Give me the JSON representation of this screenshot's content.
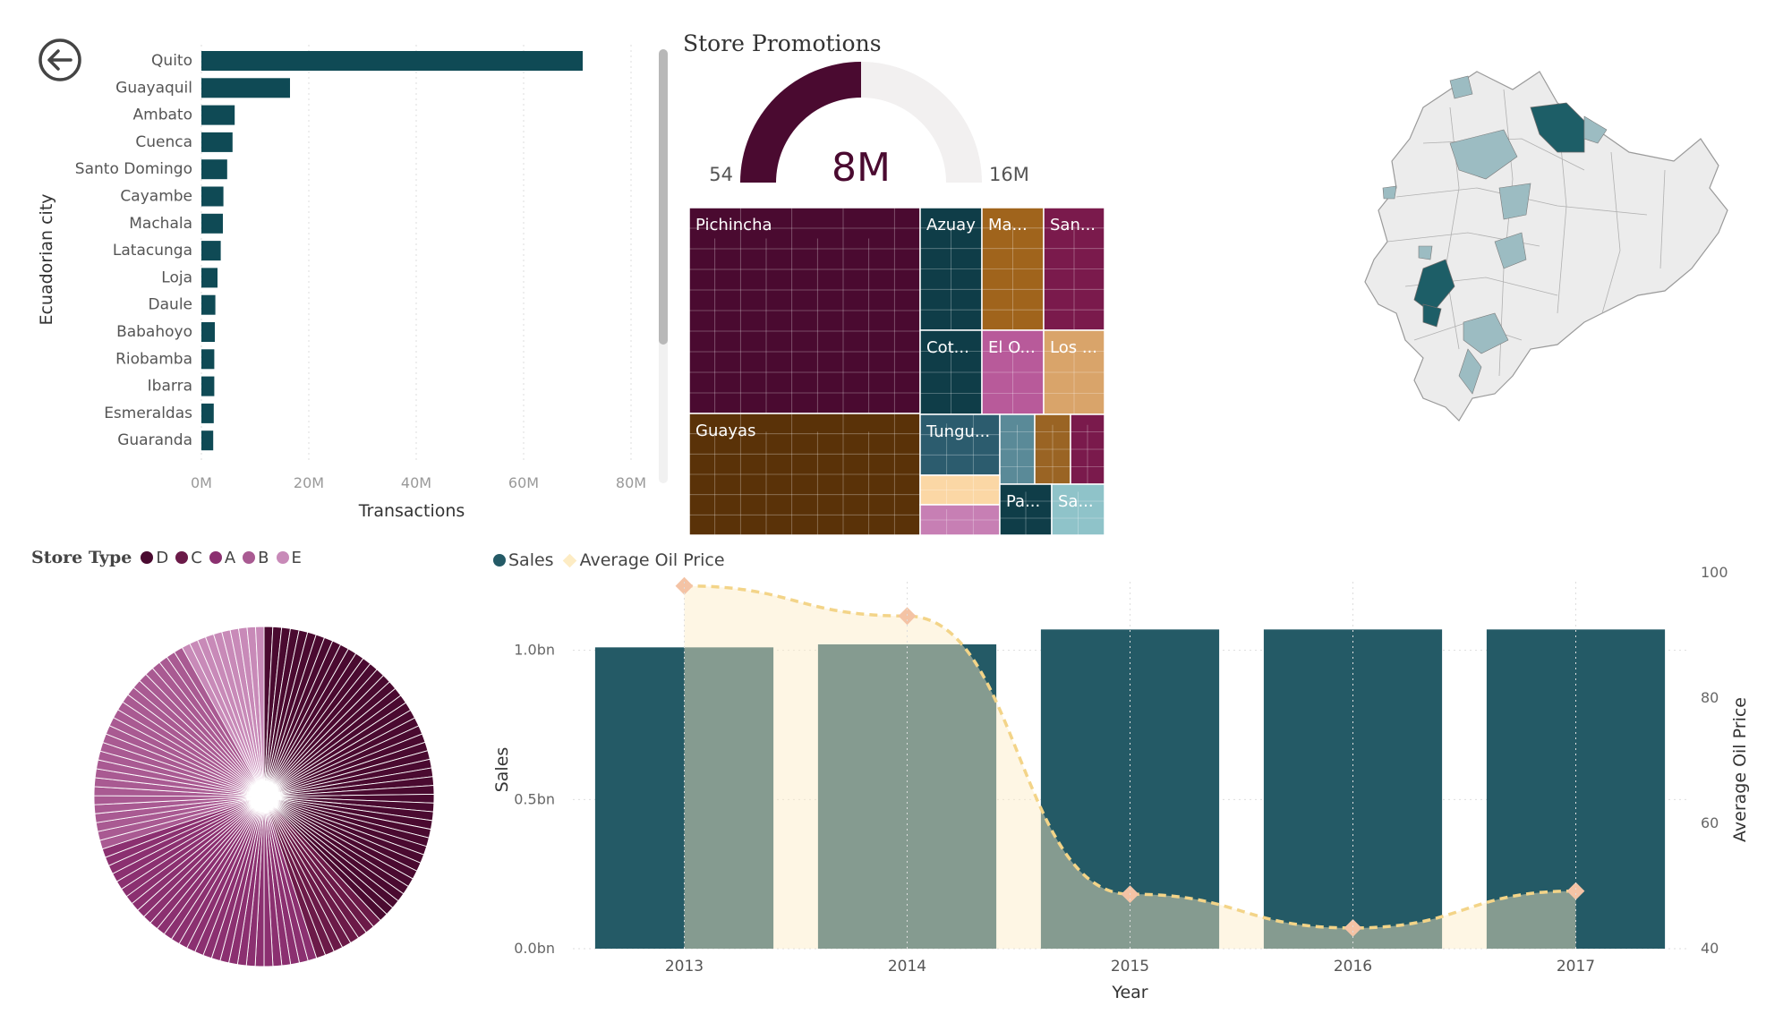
{
  "colors": {
    "teal": "#0f4a55",
    "teal_combo": "#245a66",
    "oil": "#fdecc4",
    "oil_line": "#f3d488",
    "oil_marker": "#f4c3a5",
    "overlap": "#7f9286",
    "gauge_fill": "#4a0a30",
    "gauge_bg": "#f2f0f0",
    "store_D": "#4a0a30",
    "store_C": "#6b1a48",
    "store_A": "#8b3070",
    "store_B": "#a95a92",
    "store_E": "#c88ab8"
  },
  "back_icon": "arrow-left-circle-icon",
  "city_chart": {
    "chart_data": {
      "type": "bar",
      "orientation": "horizontal",
      "ylabel": "Ecuadorian city",
      "xlabel": "Transactions",
      "categories": [
        "Quito",
        "Guayaquil",
        "Ambato",
        "Cuenca",
        "Santo Domingo",
        "Cayambe",
        "Machala",
        "Latacunga",
        "Loja",
        "Daule",
        "Babahoyo",
        "Riobamba",
        "Ibarra",
        "Esmeraldas",
        "Guaranda"
      ],
      "values": [
        71,
        16.5,
        6.2,
        5.8,
        4.8,
        4.1,
        4.0,
        3.6,
        3.0,
        2.6,
        2.5,
        2.4,
        2.4,
        2.3,
        2.2
      ],
      "value_unit": "M",
      "xlim": [
        0,
        80
      ],
      "xticks": [
        "0M",
        "20M",
        "40M",
        "60M",
        "80M"
      ],
      "grid": true
    }
  },
  "gauge": {
    "title": "Store Promotions",
    "chart_data": {
      "type": "gauge",
      "value_label": "8M",
      "min_label": "54",
      "max_label": "16M",
      "fraction": 0.5
    }
  },
  "treemap": {
    "chart_data": {
      "type": "treemap",
      "regions": [
        {
          "label": "Pichincha",
          "color": "#4a0a30"
        },
        {
          "label": "Guayas",
          "color": "#5a3208"
        },
        {
          "label": "Azuay",
          "color": "#0f3d48"
        },
        {
          "label": "Ma...",
          "color": "#a0641c"
        },
        {
          "label": "San...",
          "color": "#7a1a4c"
        },
        {
          "label": "Cot...",
          "color": "#0f3d48"
        },
        {
          "label": "El O...",
          "color": "#b85a9a"
        },
        {
          "label": "Los ...",
          "color": "#d9a46a"
        },
        {
          "label": "Tungu...",
          "color": "#2c5c6e"
        },
        {
          "label": "",
          "color": "#5a8a98"
        },
        {
          "label": "",
          "color": "#9a6424"
        },
        {
          "label": "",
          "color": "#7a1a4c"
        },
        {
          "label": "",
          "color": "#fbd7a5"
        },
        {
          "label": "",
          "color": "#c77fb4"
        },
        {
          "label": "Pa...",
          "color": "#0f3d48"
        },
        {
          "label": "Sa...",
          "color": "#8fc3c9"
        }
      ]
    }
  },
  "map": {
    "name": "Ecuador store map",
    "base_color": "#ececec",
    "highlight_dark": "#1d5e67",
    "highlight_light": "#9cbcc2"
  },
  "store_type_legend": {
    "title": "Store Type",
    "items": [
      {
        "label": "D",
        "color": "#4a0a30"
      },
      {
        "label": "C",
        "color": "#6b1a48"
      },
      {
        "label": "A",
        "color": "#8b3070"
      },
      {
        "label": "B",
        "color": "#a95a92"
      },
      {
        "label": "E",
        "color": "#c88ab8"
      }
    ]
  },
  "pie": {
    "chart_data": {
      "type": "pie",
      "series_name": "Store Type",
      "segments": [
        {
          "label": "D",
          "share": 0.38,
          "color": "#4a0a30"
        },
        {
          "label": "C",
          "share": 0.07,
          "color": "#6b1a48"
        },
        {
          "label": "A",
          "share": 0.25,
          "color": "#8b3070"
        },
        {
          "label": "B",
          "share": 0.22,
          "color": "#a95a92"
        },
        {
          "label": "E",
          "share": 0.08,
          "color": "#c88ab8"
        }
      ]
    }
  },
  "combo": {
    "legend": [
      {
        "label": "Sales",
        "color": "#245a66",
        "shape": "dot"
      },
      {
        "label": "Average Oil Price",
        "color": "#fdecc4",
        "shape": "diamond"
      }
    ],
    "chart_data": {
      "type": "bar",
      "combo": true,
      "xlabel": "Year",
      "ylabel": "Sales",
      "y2label": "Average Oil Price",
      "categories": [
        "2013",
        "2014",
        "2015",
        "2016",
        "2017"
      ],
      "series": [
        {
          "name": "Sales",
          "type": "bar",
          "values": [
            1.01,
            1.02,
            1.07,
            1.07,
            1.07
          ],
          "unit": "bn"
        },
        {
          "name": "Average Oil Price",
          "type": "area",
          "values": [
            97.9,
            93.1,
            48.7,
            43.3,
            49.2
          ],
          "axis": "y2"
        }
      ],
      "ylim": [
        0,
        1.2
      ],
      "yticks": [
        "0.0bn",
        "0.5bn",
        "1.0bn"
      ],
      "ytick_values": [
        0,
        0.5,
        1.0
      ],
      "y2lim": [
        40,
        100
      ],
      "y2ticks": [
        "40",
        "60",
        "80",
        "100"
      ],
      "y2tick_values": [
        40,
        60,
        80,
        100
      ],
      "grid": true
    }
  }
}
